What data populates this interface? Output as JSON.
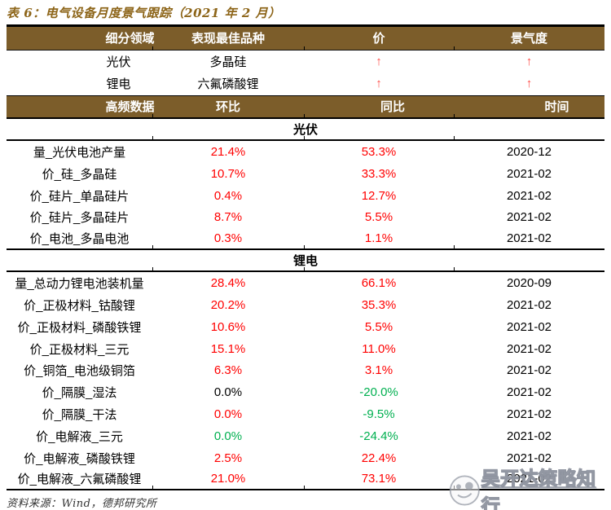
{
  "title": "表 6：电气设备月度景气跟踪（2021 年 2 月）",
  "colors": {
    "header_bg": "#7C5D2A",
    "title_text": "#8D6519",
    "red": "#FF0000",
    "green": "#00B050",
    "black": "#000000",
    "arrow": "#FF4A45"
  },
  "summary_table": {
    "headers": [
      "细分领域",
      "表现最佳品种",
      "价",
      "景气度"
    ],
    "rows": [
      {
        "segment": "光伏",
        "best_variety": "多晶硅",
        "price_arrow": "↑",
        "sentiment_arrow": "↑"
      },
      {
        "segment": "锂电",
        "best_variety": "六氟磷酸锂",
        "price_arrow": "↑",
        "sentiment_arrow": "↑"
      }
    ]
  },
  "detail_table": {
    "headers": [
      "高频数据",
      "环比",
      "同比",
      "时间"
    ],
    "sections": [
      {
        "name": "光伏",
        "rows": [
          {
            "label": "量_光伏电池产量",
            "mom": "21.4%",
            "mom_color": "red",
            "yoy": "53.3%",
            "yoy_color": "red",
            "date": "2020-12"
          },
          {
            "label": "价_硅_多晶硅",
            "mom": "10.7%",
            "mom_color": "red",
            "yoy": "33.3%",
            "yoy_color": "red",
            "date": "2021-02"
          },
          {
            "label": "价_硅片_单晶硅片",
            "mom": "0.4%",
            "mom_color": "red",
            "yoy": "12.7%",
            "yoy_color": "red",
            "date": "2021-02"
          },
          {
            "label": "价_硅片_多晶硅片",
            "mom": "8.7%",
            "mom_color": "red",
            "yoy": "5.5%",
            "yoy_color": "red",
            "date": "2021-02"
          },
          {
            "label": "价_电池_多晶电池",
            "mom": "0.3%",
            "mom_color": "red",
            "yoy": "1.1%",
            "yoy_color": "red",
            "date": "2021-02"
          }
        ]
      },
      {
        "name": "锂电",
        "rows": [
          {
            "label": "量_总动力锂电池装机量",
            "mom": "28.4%",
            "mom_color": "red",
            "yoy": "66.1%",
            "yoy_color": "red",
            "date": "2020-09"
          },
          {
            "label": "价_正极材料_钴酸锂",
            "mom": "20.2%",
            "mom_color": "red",
            "yoy": "35.3%",
            "yoy_color": "red",
            "date": "2021-02"
          },
          {
            "label": "价_正极材料_磷酸铁锂",
            "mom": "10.6%",
            "mom_color": "red",
            "yoy": "5.5%",
            "yoy_color": "red",
            "date": "2021-02"
          },
          {
            "label": "价_正极材料_三元",
            "mom": "15.1%",
            "mom_color": "red",
            "yoy": "11.0%",
            "yoy_color": "red",
            "date": "2021-02"
          },
          {
            "label": "价_铜箔_电池级铜箔",
            "mom": "6.3%",
            "mom_color": "red",
            "yoy": "3.1%",
            "yoy_color": "red",
            "date": "2021-02"
          },
          {
            "label": "价_隔膜_湿法",
            "mom": "0.0%",
            "mom_color": "black",
            "yoy": "-20.0%",
            "yoy_color": "green",
            "date": "2021-02"
          },
          {
            "label": "价_隔膜_干法",
            "mom": "0.0%",
            "mom_color": "red",
            "yoy": "-9.5%",
            "yoy_color": "green",
            "date": "2021-02"
          },
          {
            "label": "价_电解液_三元",
            "mom": "0.0%",
            "mom_color": "green",
            "yoy": "-24.4%",
            "yoy_color": "green",
            "date": "2021-02"
          },
          {
            "label": "价_电解液_磷酸铁锂",
            "mom": "2.5%",
            "mom_color": "red",
            "yoy": "22.4%",
            "yoy_color": "red",
            "date": "2021-02"
          },
          {
            "label": "价_电解液_六氟磷酸锂",
            "mom": "21.0%",
            "mom_color": "red",
            "yoy": "73.1%",
            "yoy_color": "red",
            "date": "2021-02"
          }
        ]
      }
    ]
  },
  "footer": "资料来源：Wind，德邦研究所",
  "watermark": {
    "text": "吴开达策略知行",
    "logo": "panda-logo"
  }
}
